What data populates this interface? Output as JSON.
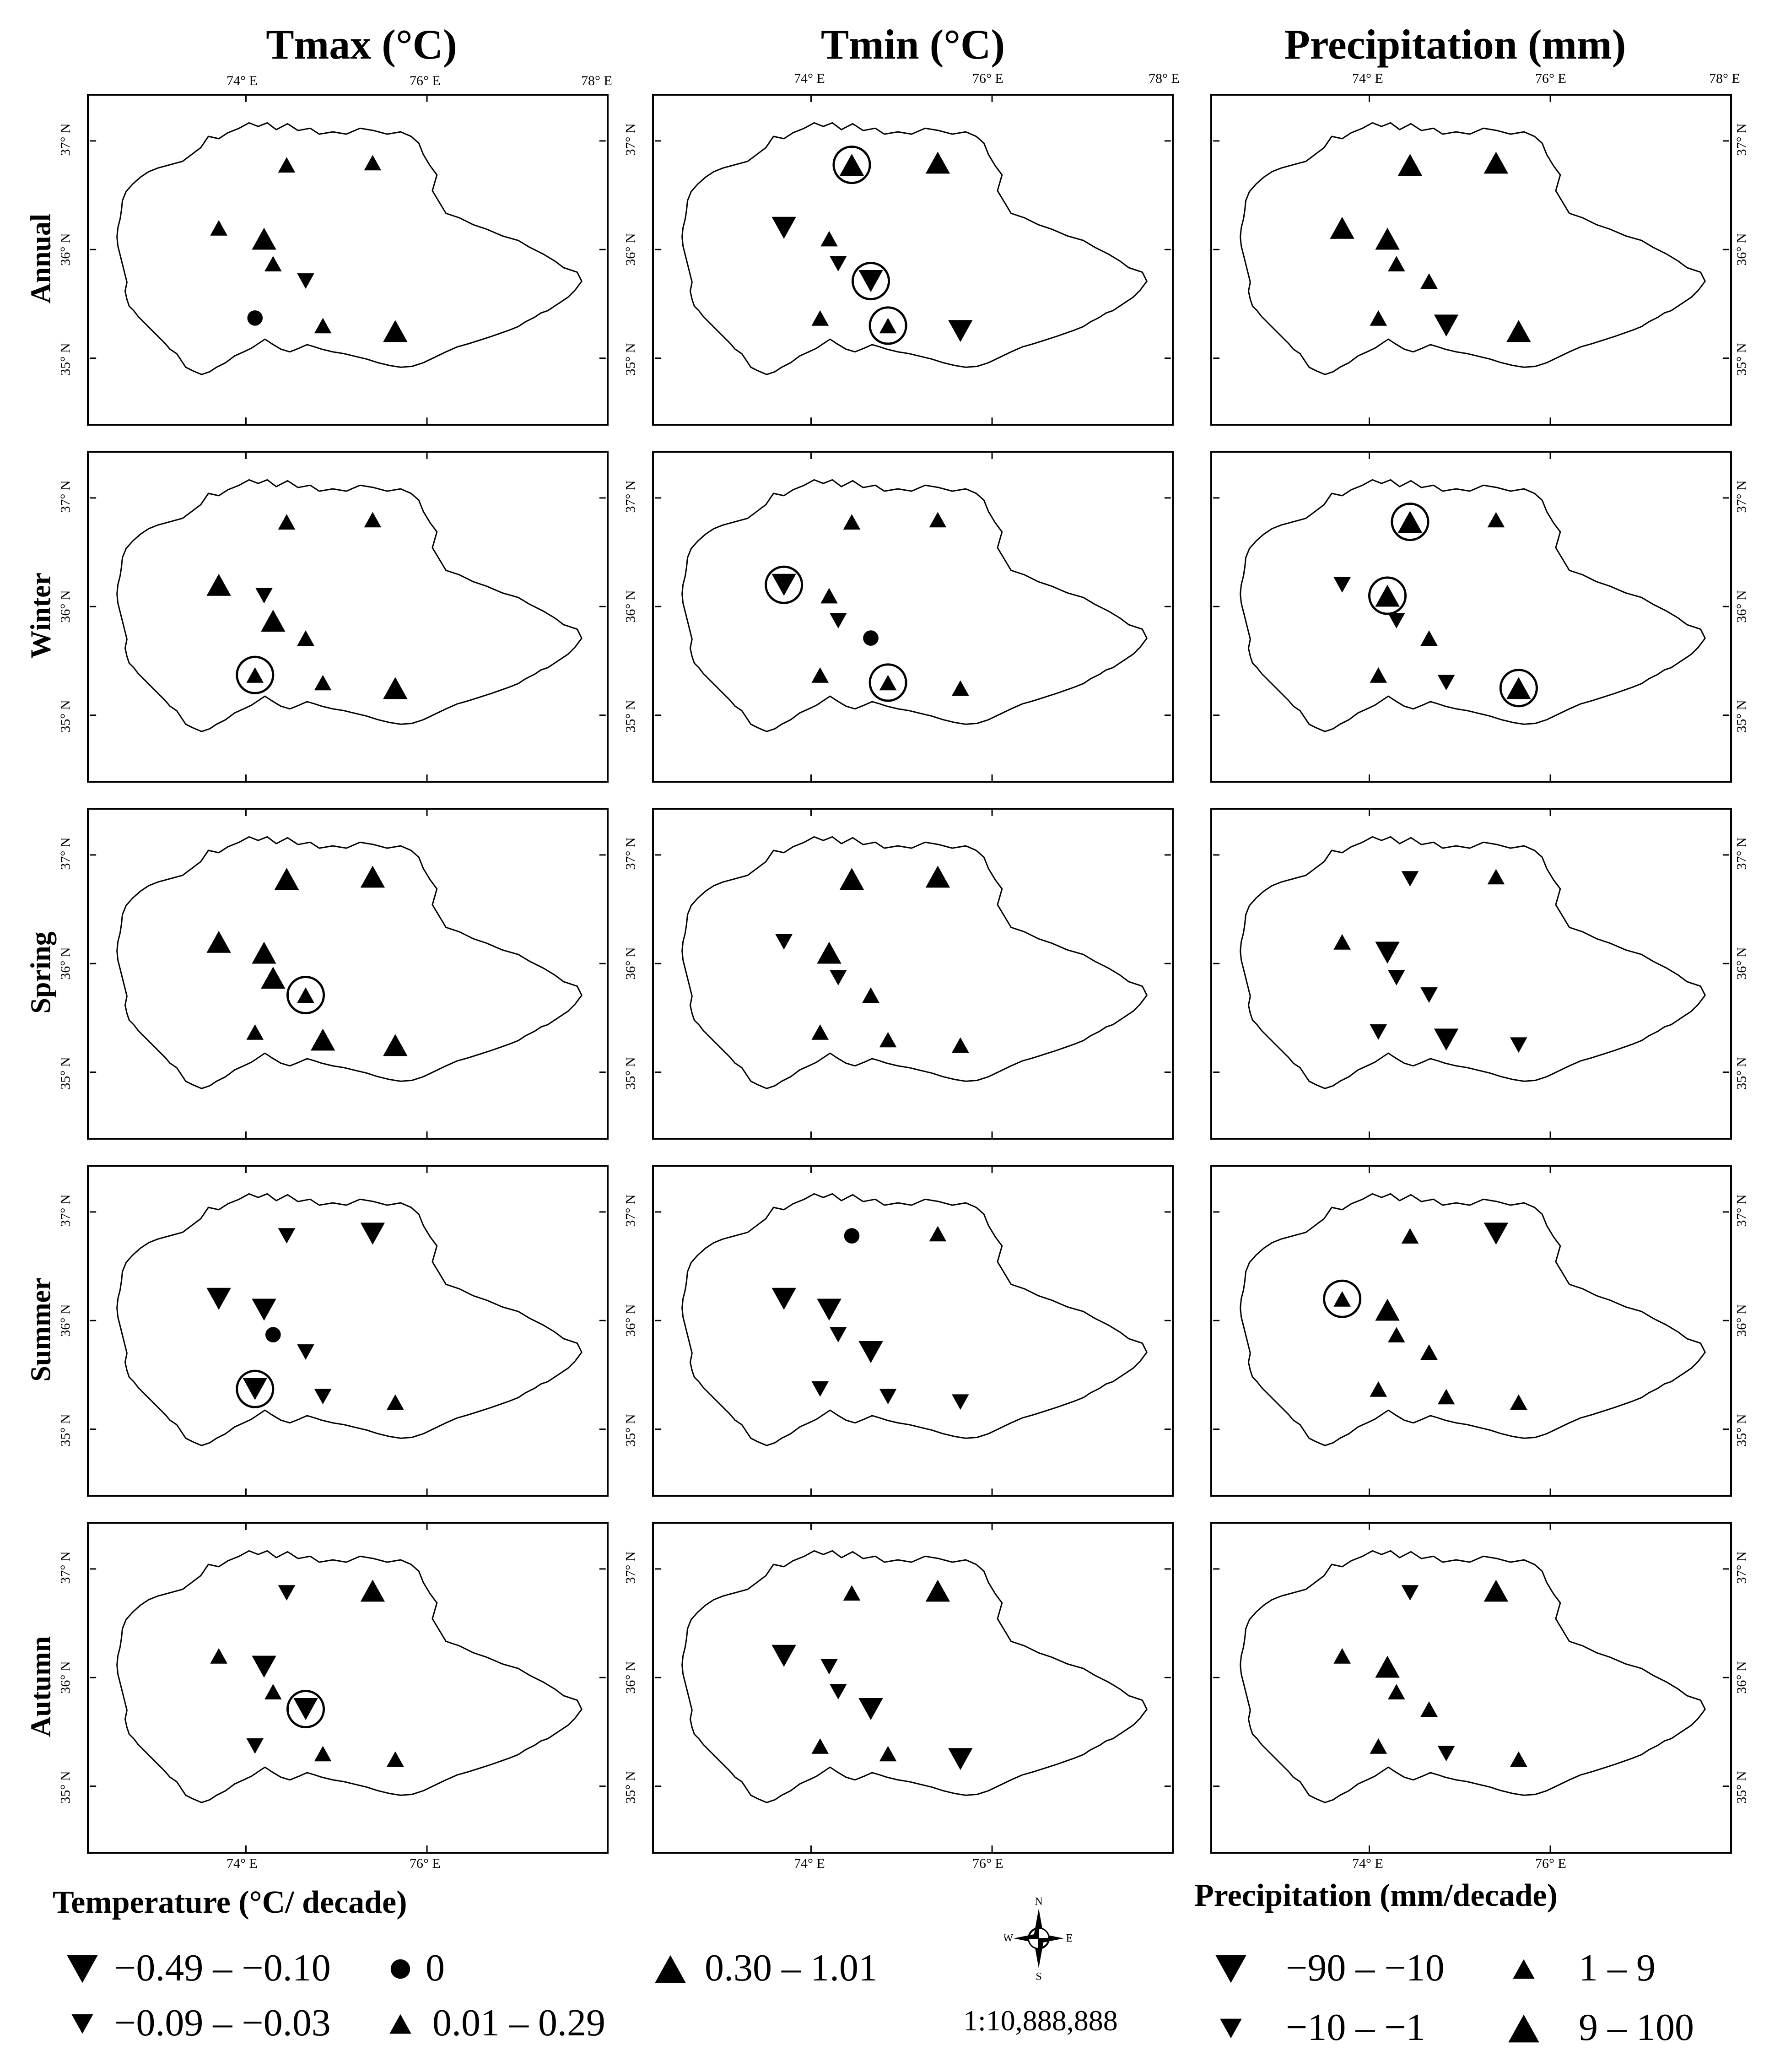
{
  "columns": [
    {
      "key": "tmax",
      "title": "Tmax (°C)"
    },
    {
      "key": "tmin",
      "title": "Tmin (°C)"
    },
    {
      "key": "precip",
      "title": "Precipitation (mm)"
    }
  ],
  "rows": [
    "Annual",
    "Winter",
    "Spring",
    "Summer",
    "Autumn"
  ],
  "axis_labels": {
    "lon_top": [
      "74° E",
      "76° E",
      "78° E"
    ],
    "lon_bottom": [
      "74° E",
      "76° E"
    ],
    "lat": [
      "37° N",
      "36° N",
      "35° N"
    ]
  },
  "stations": [
    {
      "lon": 74.45,
      "lat": 36.78
    },
    {
      "lon": 75.4,
      "lat": 36.8
    },
    {
      "lon": 73.7,
      "lat": 36.2
    },
    {
      "lon": 74.2,
      "lat": 36.1
    },
    {
      "lon": 74.3,
      "lat": 35.87
    },
    {
      "lon": 74.66,
      "lat": 35.71
    },
    {
      "lon": 74.1,
      "lat": 35.37
    },
    {
      "lon": 74.85,
      "lat": 35.3
    },
    {
      "lon": 75.65,
      "lat": 35.25
    }
  ],
  "symbol_classes": {
    "L_dn": "−0.49 – −0.10 / −90 – −10",
    "S_dn": "−0.09 – −0.03 / −10 – −1",
    "Z": "0",
    "S_up": "0.01 – 0.29 / 1 – 9",
    "L_up": "0.30 – 1.01 / 9 – 100"
  },
  "panels": {
    "tmax": {
      "Annual": {
        "sym": [
          "S_up",
          "S_up",
          "S_up",
          "L_up",
          "S_up",
          "S_dn",
          "Z",
          "S_up",
          "L_up"
        ],
        "circled": []
      },
      "Winter": {
        "sym": [
          "S_up",
          "S_up",
          "L_up",
          "S_dn",
          "L_up",
          "S_up",
          "S_up",
          "S_up",
          "L_up"
        ],
        "circled": [
          6
        ]
      },
      "Spring": {
        "sym": [
          "L_up",
          "L_up",
          "L_up",
          "L_up",
          "L_up",
          "S_up",
          "S_up",
          "L_up",
          "L_up"
        ],
        "circled": [
          5
        ]
      },
      "Summer": {
        "sym": [
          "S_dn",
          "L_dn",
          "L_dn",
          "L_dn",
          "Z",
          "S_dn",
          "L_dn",
          "S_dn",
          "S_up"
        ],
        "circled": [
          6
        ]
      },
      "Autumn": {
        "sym": [
          "S_dn",
          "L_up",
          "S_up",
          "L_dn",
          "S_up",
          "L_dn",
          "S_dn",
          "S_up",
          "S_up"
        ],
        "circled": [
          5
        ]
      }
    },
    "tmin": {
      "Annual": {
        "sym": [
          "L_up",
          "L_up",
          "L_dn",
          "S_up",
          "S_dn",
          "L_dn",
          "S_up",
          "S_up",
          "L_dn"
        ],
        "circled": [
          0,
          5,
          7
        ]
      },
      "Winter": {
        "sym": [
          "S_up",
          "S_up",
          "L_dn",
          "S_up",
          "S_dn",
          "Z",
          "S_up",
          "S_up",
          "S_up"
        ],
        "circled": [
          2,
          7
        ]
      },
      "Spring": {
        "sym": [
          "L_up",
          "L_up",
          "S_dn",
          "L_up",
          "S_dn",
          "S_up",
          "S_up",
          "S_up",
          "S_up"
        ],
        "circled": []
      },
      "Summer": {
        "sym": [
          "Z",
          "S_up",
          "L_dn",
          "L_dn",
          "S_dn",
          "L_dn",
          "S_dn",
          "S_dn",
          "S_dn"
        ],
        "circled": []
      },
      "Autumn": {
        "sym": [
          "S_up",
          "L_up",
          "L_dn",
          "S_dn",
          "S_dn",
          "L_dn",
          "S_up",
          "S_up",
          "L_dn"
        ],
        "circled": []
      }
    },
    "precip": {
      "Annual": {
        "sym": [
          "L_up",
          "L_up",
          "L_up",
          "L_up",
          "S_up",
          "S_up",
          "S_up",
          "L_dn",
          "L_up"
        ],
        "circled": []
      },
      "Winter": {
        "sym": [
          "L_up",
          "S_up",
          "S_dn",
          "L_up",
          "S_dn",
          "S_up",
          "S_up",
          "S_dn",
          "L_up"
        ],
        "circled": [
          0,
          3,
          8
        ]
      },
      "Spring": {
        "sym": [
          "S_dn",
          "S_up",
          "S_up",
          "L_dn",
          "S_dn",
          "S_dn",
          "S_dn",
          "L_dn",
          "S_dn"
        ],
        "circled": []
      },
      "Summer": {
        "sym": [
          "S_up",
          "L_dn",
          "S_up",
          "L_up",
          "S_up",
          "S_up",
          "S_up",
          "S_up",
          "S_up"
        ],
        "circled": [
          2
        ]
      },
      "Autumn": {
        "sym": [
          "S_dn",
          "L_up",
          "S_up",
          "L_up",
          "S_up",
          "S_up",
          "S_up",
          "S_dn",
          "S_up"
        ],
        "circled": []
      }
    }
  },
  "legend": {
    "temperature": {
      "title": "Temperature (°C/ decade)",
      "items": [
        {
          "sym": "L_dn",
          "label": "−0.49 – −0.10"
        },
        {
          "sym": "Z",
          "label": "0"
        },
        {
          "sym": "L_up",
          "label": "0.30 – 1.01"
        },
        {
          "sym": "S_dn",
          "label": "−0.09 – −0.03"
        },
        {
          "sym": "S_up",
          "label": "0.01 – 0.29"
        }
      ]
    },
    "precipitation": {
      "title": "Precipitation (mm/decade)",
      "items": [
        {
          "sym": "L_dn",
          "label": "−90 – −10"
        },
        {
          "sym": "S_up",
          "label": "1 – 9"
        },
        {
          "sym": "S_dn",
          "label": "−10 – −1"
        },
        {
          "sym": "L_up",
          "label": "9 – 100"
        }
      ]
    }
  },
  "compass": {
    "n": "N",
    "e": "E",
    "s": "S",
    "w": "W"
  },
  "scale": "1:10,888,888"
}
